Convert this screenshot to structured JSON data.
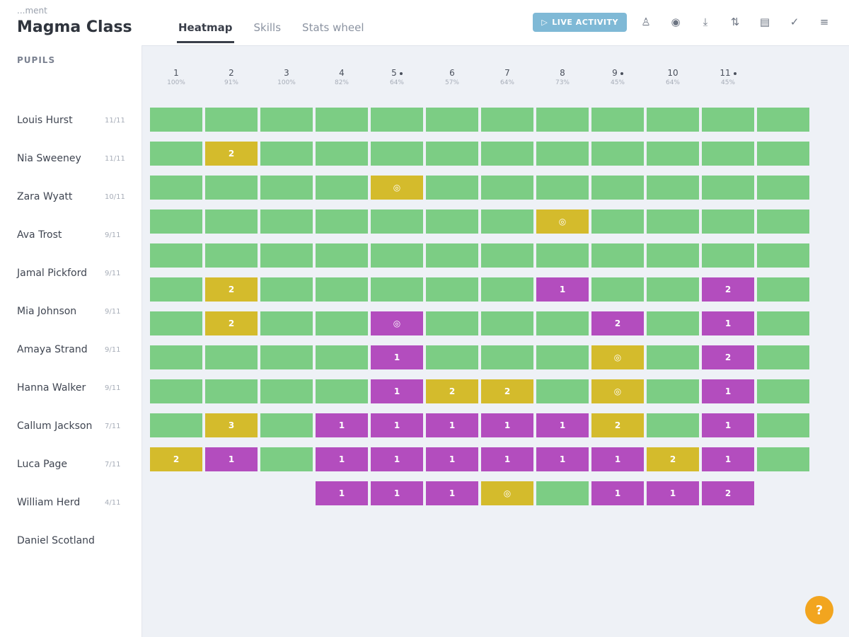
{
  "header": {
    "breadcrumb": "...ment",
    "class_title": "Magma Class",
    "tabs": [
      {
        "label": "Heatmap",
        "active": true
      },
      {
        "label": "Skills",
        "active": false
      },
      {
        "label": "Stats wheel",
        "active": false
      }
    ],
    "live_activity_label": "LIVE ACTIVITY",
    "toolbar_icons": [
      "person-icon",
      "eye-icon",
      "download-icon",
      "sort-icon",
      "pdf-icon",
      "check-circle-icon",
      "filter-icon"
    ]
  },
  "sidebar": {
    "pupils_label": "PUPILS",
    "pupils": [
      {
        "name": "Louis Hurst",
        "score": "11/11"
      },
      {
        "name": "Nia Sweeney",
        "score": "11/11"
      },
      {
        "name": "Zara Wyatt",
        "score": "10/11"
      },
      {
        "name": "Ava Trost",
        "score": "9/11"
      },
      {
        "name": "Jamal Pickford",
        "score": "9/11"
      },
      {
        "name": "Mia Johnson",
        "score": "9/11"
      },
      {
        "name": "Amaya Strand",
        "score": "9/11"
      },
      {
        "name": "Hanna Walker",
        "score": "9/11"
      },
      {
        "name": "Callum Jackson",
        "score": "7/11"
      },
      {
        "name": "Luca Page",
        "score": "7/11"
      },
      {
        "name": "William Herd",
        "score": "4/11"
      },
      {
        "name": "Daniel Scotland",
        "score": ""
      }
    ]
  },
  "columns": [
    {
      "num": "1",
      "pct": "100%",
      "dot": false
    },
    {
      "num": "2",
      "pct": "91%",
      "dot": false
    },
    {
      "num": "3",
      "pct": "100%",
      "dot": false
    },
    {
      "num": "4",
      "pct": "82%",
      "dot": false
    },
    {
      "num": "5",
      "pct": "64%",
      "dot": true
    },
    {
      "num": "6",
      "pct": "57%",
      "dot": false
    },
    {
      "num": "7",
      "pct": "64%",
      "dot": false
    },
    {
      "num": "8",
      "pct": "73%",
      "dot": false
    },
    {
      "num": "9",
      "pct": "45%",
      "dot": true
    },
    {
      "num": "10",
      "pct": "64%",
      "dot": false
    },
    {
      "num": "11",
      "pct": "45%",
      "dot": true
    }
  ],
  "heatmap": [
    [
      "g",
      "g",
      "g",
      "g",
      "g",
      "g",
      "g",
      "g",
      "g",
      "g",
      "g",
      "g"
    ],
    [
      "g",
      "y:2",
      "g",
      "g",
      "g",
      "g",
      "g",
      "g",
      "g",
      "g",
      "g",
      "g"
    ],
    [
      "g",
      "g",
      "g",
      "g",
      "y:eye",
      "g",
      "g",
      "g",
      "g",
      "g",
      "g",
      "g"
    ],
    [
      "g",
      "g",
      "g",
      "g",
      "g",
      "g",
      "g",
      "y:eye",
      "g",
      "g",
      "g",
      "g"
    ],
    [
      "g",
      "g",
      "g",
      "g",
      "g",
      "g",
      "g",
      "g",
      "g",
      "g",
      "g",
      "g"
    ],
    [
      "g",
      "y:2",
      "g",
      "g",
      "g",
      "g",
      "g",
      "p:1",
      "g",
      "g",
      "p:2",
      "g"
    ],
    [
      "g",
      "y:2",
      "g",
      "g",
      "p:eye",
      "g",
      "g",
      "g",
      "p:2",
      "g",
      "p:1",
      "g"
    ],
    [
      "g",
      "g",
      "g",
      "g",
      "p:1",
      "g",
      "g",
      "g",
      "y:eye",
      "g",
      "p:2",
      "g"
    ],
    [
      "g",
      "g",
      "g",
      "g",
      "p:1",
      "y:2",
      "y:2",
      "g",
      "y:eye",
      "g",
      "p:1",
      "g"
    ],
    [
      "g",
      "y:3",
      "g",
      "p:1",
      "p:1",
      "p:1",
      "p:1",
      "p:1",
      "y:2",
      "g",
      "p:1",
      "g"
    ],
    [
      "y:2",
      "p:1",
      "g",
      "p:1",
      "p:1",
      "p:1",
      "p:1",
      "p:1",
      "p:1",
      "y:2",
      "p:1",
      "g"
    ],
    [
      "",
      "",
      "",
      "p:1",
      "p:1",
      "p:1",
      "y:eye",
      "g",
      "p:1",
      "p:1",
      "p:2",
      ""
    ]
  ],
  "colors": {
    "mastered": "#7ccd84",
    "partial": "#d4bb2c",
    "struggling": "#b34dbe"
  },
  "fab_label": "?"
}
